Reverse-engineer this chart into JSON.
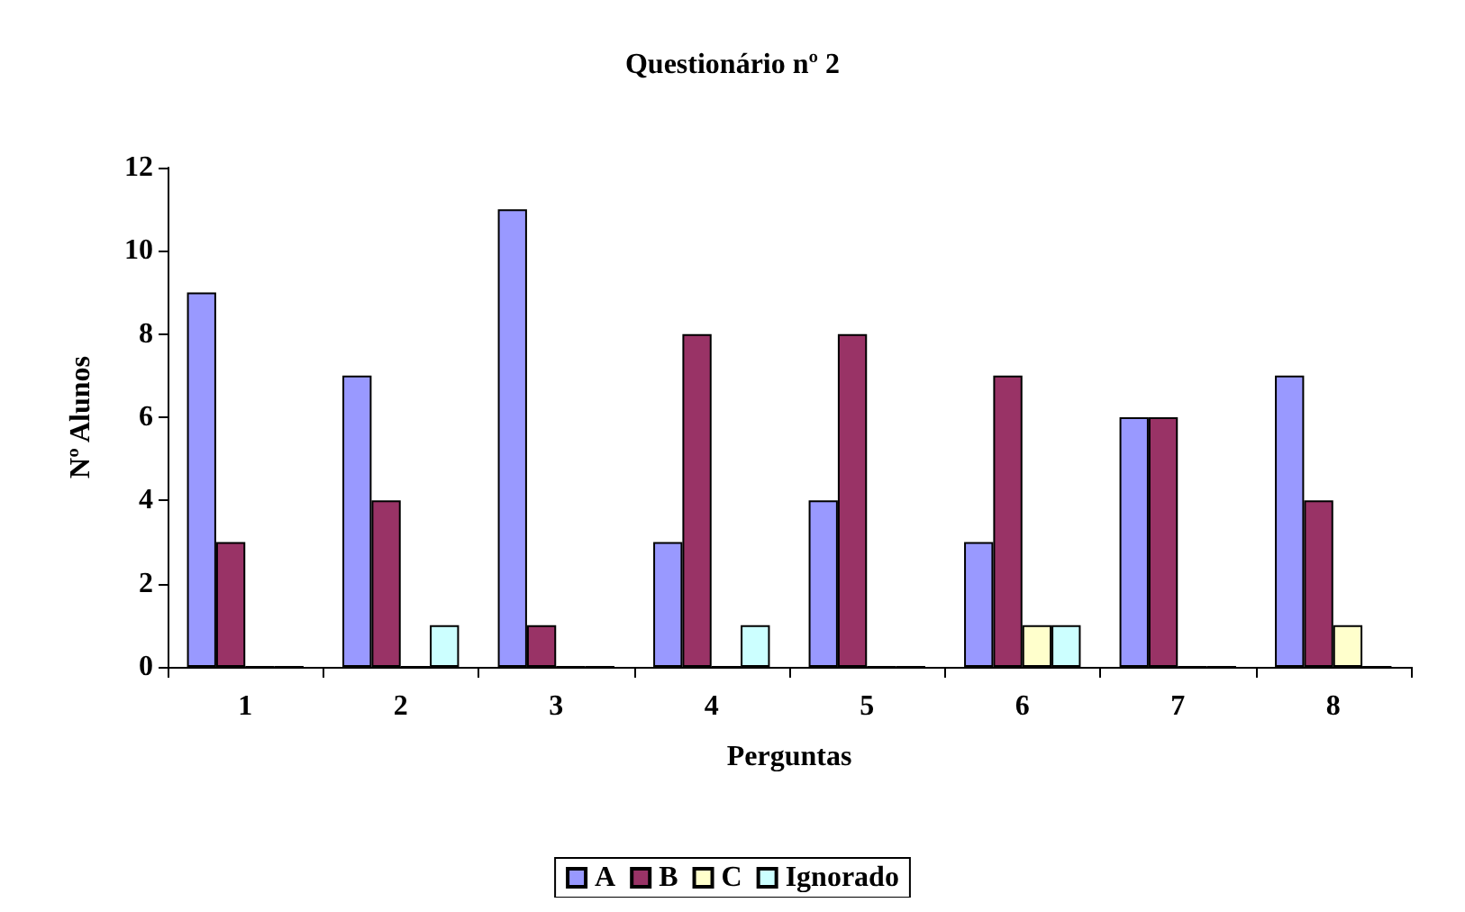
{
  "chart_data": {
    "type": "bar",
    "title": "Questionário nº 2",
    "xlabel": "Perguntas",
    "ylabel": "Nº Alunos",
    "categories": [
      "1",
      "2",
      "3",
      "4",
      "5",
      "6",
      "7",
      "8"
    ],
    "series": [
      {
        "name": "A",
        "color": "#9999ff",
        "values": [
          9,
          7,
          11,
          3,
          4,
          3,
          6,
          7
        ]
      },
      {
        "name": "B",
        "color": "#993366",
        "values": [
          3,
          4,
          1,
          8,
          8,
          7,
          6,
          4
        ]
      },
      {
        "name": "C",
        "color": "#ffffcc",
        "values": [
          0,
          0,
          0,
          0,
          0,
          1,
          0,
          1
        ]
      },
      {
        "name": "Ignorado",
        "color": "#ccffff",
        "values": [
          0,
          1,
          0,
          1,
          0,
          1,
          0,
          0
        ]
      }
    ],
    "ylim": [
      0,
      12
    ],
    "yticks": [
      0,
      2,
      4,
      6,
      8,
      10,
      12
    ],
    "grid": false,
    "legend": "bottom"
  }
}
